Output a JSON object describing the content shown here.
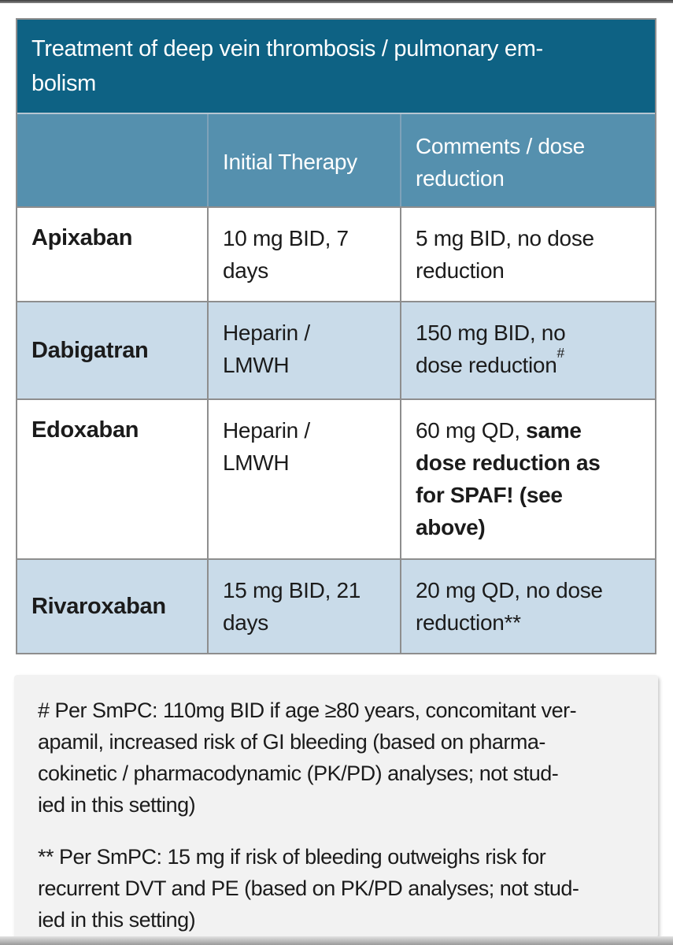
{
  "colors": {
    "title_bg": "#0e6284",
    "header_bg": "#5590ae",
    "row_bg": "#ffffff",
    "row_alt_bg": "#c9dbe9",
    "border": "#8e8e8e",
    "header_text": "#ffffff",
    "text": "#1b1b1b",
    "footnote_bg": "#f2f2f2"
  },
  "table": {
    "title": "Treatment of deep vein thrombosis / pulmonary em-\nbolism",
    "header": {
      "drug": "",
      "initial": "Initial Therapy",
      "comments": "Comments / dose\nreduction"
    },
    "rows": [
      {
        "drug": "Apixaban",
        "initial": "10 mg BID, 7\ndays",
        "comment": "5 mg BID, no dose\nreduction"
      },
      {
        "drug": "Dabigatran",
        "initial": "Heparin /\nLMWH",
        "comment": "150 mg BID, no\ndose reduction",
        "comment_sup": "#"
      },
      {
        "drug": "Edoxaban",
        "initial": "Heparin /\nLMWH",
        "comment_prefix": "60 mg QD, ",
        "comment_bold": "same\ndose reduction as\nfor SPAF! (see\nabove)"
      },
      {
        "drug": "Rivaroxaban",
        "initial": "15 mg BID, 21\ndays",
        "comment": "20 mg QD, no dose\nreduction**"
      }
    ]
  },
  "footnotes": {
    "note_hash": "# Per SmPC: 110mg BID if age ≥80 years, concomitant ver-\napamil, increased risk of GI bleeding (based on pharma-\ncokinetic / pharmacodynamic (PK/PD) analyses; not stud-\nied in this setting)",
    "note_asterisk": "** Per SmPC: 15 mg if risk of bleeding outweighs risk for\nrecurrent DVT and PE (based on PK/PD analyses; not stud-\nied in this setting)"
  }
}
